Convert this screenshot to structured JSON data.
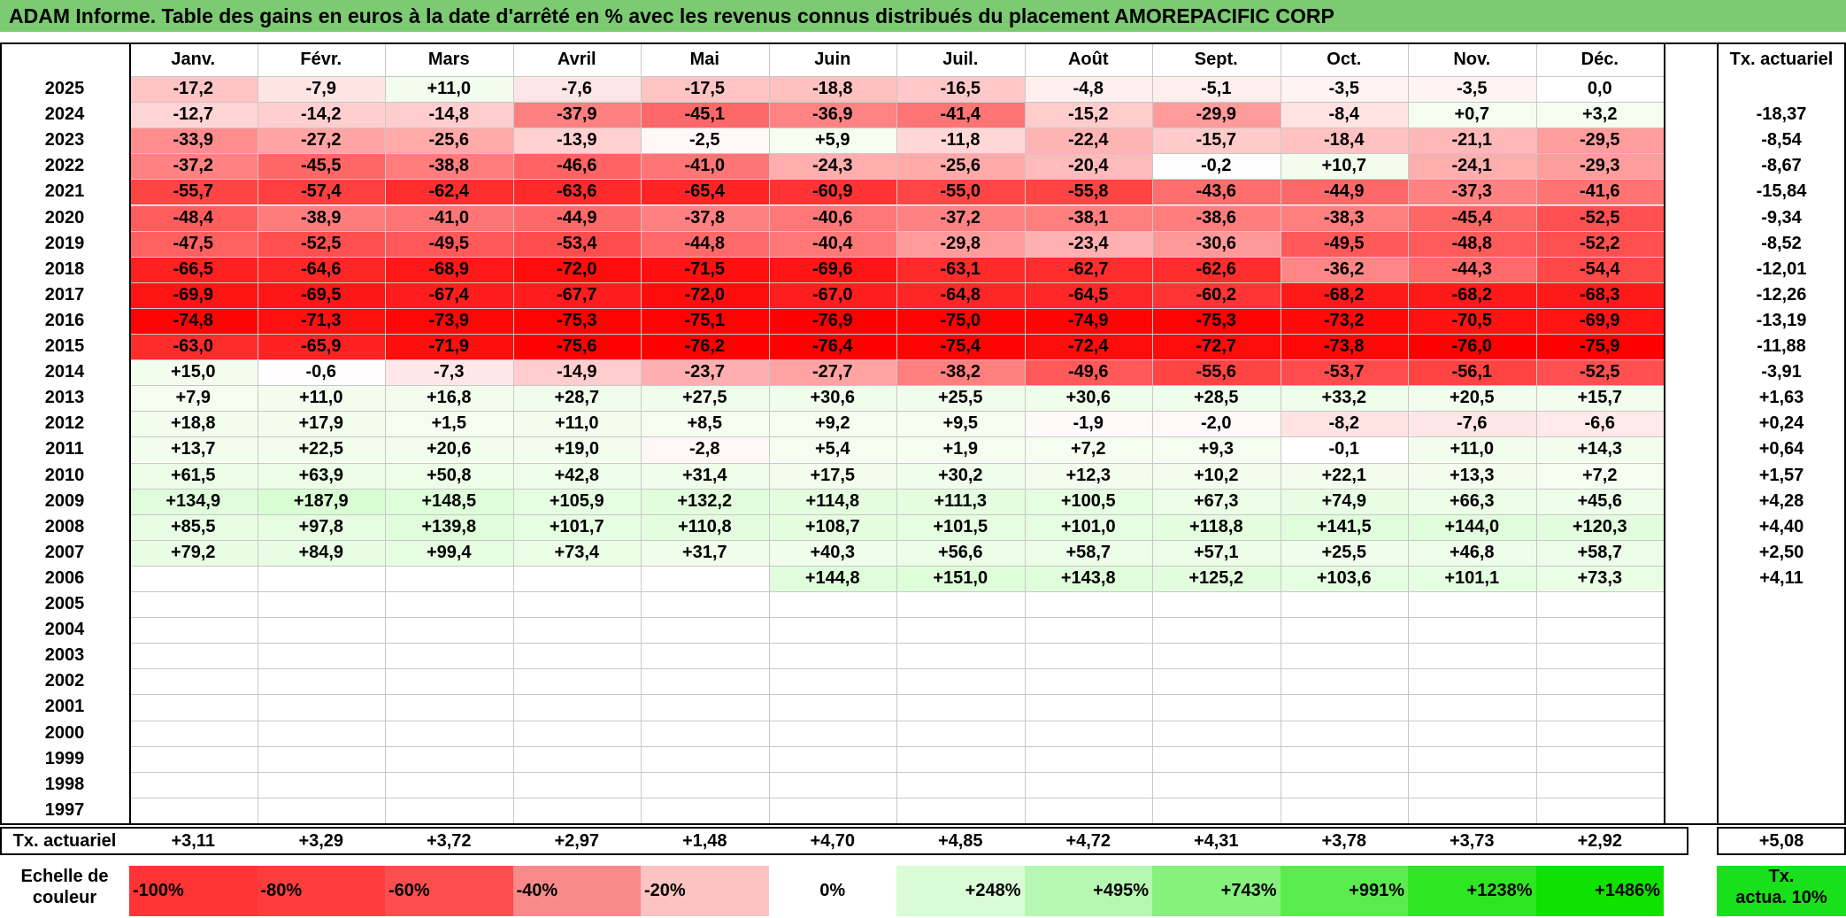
{
  "title": "ADAM Informe. Table des gains en euros à la date d'arrêté en % avec les revenus connus distribués du placement AMOREPACIFIC CORP",
  "months": [
    "Janv.",
    "Févr.",
    "Mars",
    "Avril",
    "Mai",
    "Juin",
    "Juil.",
    "Août",
    "Sept.",
    "Oct.",
    "Nov.",
    "Déc."
  ],
  "tx_header": "Tx. actuariel",
  "rows": [
    {
      "year": "2025",
      "values": [
        "-17,2",
        "-7,9",
        "+11,0",
        "-7,6",
        "-17,5",
        "-18,8",
        "-16,5",
        "-4,8",
        "-5,1",
        "-3,5",
        "-3,5",
        "0,0"
      ],
      "tx": ""
    },
    {
      "year": "2024",
      "values": [
        "-12,7",
        "-14,2",
        "-14,8",
        "-37,9",
        "-45,1",
        "-36,9",
        "-41,4",
        "-15,2",
        "-29,9",
        "-8,4",
        "+0,7",
        "+3,2"
      ],
      "tx": "-18,37"
    },
    {
      "year": "2023",
      "values": [
        "-33,9",
        "-27,2",
        "-25,6",
        "-13,9",
        "-2,5",
        "+5,9",
        "-11,8",
        "-22,4",
        "-15,7",
        "-18,4",
        "-21,1",
        "-29,5"
      ],
      "tx": "-8,54"
    },
    {
      "year": "2022",
      "values": [
        "-37,2",
        "-45,5",
        "-38,8",
        "-46,6",
        "-41,0",
        "-24,3",
        "-25,6",
        "-20,4",
        "-0,2",
        "+10,7",
        "-24,1",
        "-29,3"
      ],
      "tx": "-8,67"
    },
    {
      "year": "2021",
      "values": [
        "-55,7",
        "-57,4",
        "-62,4",
        "-63,6",
        "-65,4",
        "-60,9",
        "-55,0",
        "-55,8",
        "-43,6",
        "-44,9",
        "-37,3",
        "-41,6"
      ],
      "tx": "-15,84"
    },
    {
      "year": "2020",
      "values": [
        "-48,4",
        "-38,9",
        "-41,0",
        "-44,9",
        "-37,8",
        "-40,6",
        "-37,2",
        "-38,1",
        "-38,6",
        "-38,3",
        "-45,4",
        "-52,5"
      ],
      "tx": "-9,34"
    },
    {
      "year": "2019",
      "values": [
        "-47,5",
        "-52,5",
        "-49,5",
        "-53,4",
        "-44,8",
        "-40,4",
        "-29,8",
        "-23,4",
        "-30,6",
        "-49,5",
        "-48,8",
        "-52,2"
      ],
      "tx": "-8,52"
    },
    {
      "year": "2018",
      "values": [
        "-66,5",
        "-64,6",
        "-68,9",
        "-72,0",
        "-71,5",
        "-69,6",
        "-63,1",
        "-62,7",
        "-62,6",
        "-36,2",
        "-44,3",
        "-54,4"
      ],
      "tx": "-12,01"
    },
    {
      "year": "2017",
      "values": [
        "-69,9",
        "-69,5",
        "-67,4",
        "-67,7",
        "-72,0",
        "-67,0",
        "-64,8",
        "-64,5",
        "-60,2",
        "-68,2",
        "-68,2",
        "-68,3"
      ],
      "tx": "-12,26"
    },
    {
      "year": "2016",
      "values": [
        "-74,8",
        "-71,3",
        "-73,9",
        "-75,3",
        "-75,1",
        "-76,9",
        "-75,0",
        "-74,9",
        "-75,3",
        "-73,2",
        "-70,5",
        "-69,9"
      ],
      "tx": "-13,19"
    },
    {
      "year": "2015",
      "values": [
        "-63,0",
        "-65,9",
        "-71,9",
        "-75,6",
        "-76,2",
        "-76,4",
        "-75,4",
        "-72,4",
        "-72,7",
        "-73,8",
        "-76,0",
        "-75,9"
      ],
      "tx": "-11,88"
    },
    {
      "year": "2014",
      "values": [
        "+15,0",
        "-0,6",
        "-7,3",
        "-14,9",
        "-23,7",
        "-27,7",
        "-38,2",
        "-49,6",
        "-55,6",
        "-53,7",
        "-56,1",
        "-52,5"
      ],
      "tx": "-3,91"
    },
    {
      "year": "2013",
      "values": [
        "+7,9",
        "+11,0",
        "+16,8",
        "+28,7",
        "+27,5",
        "+30,6",
        "+25,5",
        "+30,6",
        "+28,5",
        "+33,2",
        "+20,5",
        "+15,7"
      ],
      "tx": "+1,63"
    },
    {
      "year": "2012",
      "values": [
        "+18,8",
        "+17,9",
        "+1,5",
        "+11,0",
        "+8,5",
        "+9,2",
        "+9,5",
        "-1,9",
        "-2,0",
        "-8,2",
        "-7,6",
        "-6,6"
      ],
      "tx": "+0,24"
    },
    {
      "year": "2011",
      "values": [
        "+13,7",
        "+22,5",
        "+20,6",
        "+19,0",
        "-2,8",
        "+5,4",
        "+1,9",
        "+7,2",
        "+9,3",
        "-0,1",
        "+11,0",
        "+14,3"
      ],
      "tx": "+0,64"
    },
    {
      "year": "2010",
      "values": [
        "+61,5",
        "+63,9",
        "+50,8",
        "+42,8",
        "+31,4",
        "+17,5",
        "+30,2",
        "+12,3",
        "+10,2",
        "+22,1",
        "+13,3",
        "+7,2"
      ],
      "tx": "+1,57"
    },
    {
      "year": "2009",
      "values": [
        "+134,9",
        "+187,9",
        "+148,5",
        "+105,9",
        "+132,2",
        "+114,8",
        "+111,3",
        "+100,5",
        "+67,3",
        "+74,9",
        "+66,3",
        "+45,6"
      ],
      "tx": "+4,28"
    },
    {
      "year": "2008",
      "values": [
        "+85,5",
        "+97,8",
        "+139,8",
        "+101,7",
        "+110,8",
        "+108,7",
        "+101,5",
        "+101,0",
        "+118,8",
        "+141,5",
        "+144,0",
        "+120,3"
      ],
      "tx": "+4,40"
    },
    {
      "year": "2007",
      "values": [
        "+79,2",
        "+84,9",
        "+99,4",
        "+73,4",
        "+31,7",
        "+40,3",
        "+56,6",
        "+58,7",
        "+57,1",
        "+25,5",
        "+46,8",
        "+58,7"
      ],
      "tx": "+2,50"
    },
    {
      "year": "2006",
      "values": [
        "",
        "",
        "",
        "",
        "",
        "+144,8",
        "+151,0",
        "+143,8",
        "+125,2",
        "+103,6",
        "+101,1",
        "+73,3"
      ],
      "tx": "+4,11"
    },
    {
      "year": "2005",
      "values": [
        "",
        "",
        "",
        "",
        "",
        "",
        "",
        "",
        "",
        "",
        "",
        ""
      ],
      "tx": ""
    },
    {
      "year": "2004",
      "values": [
        "",
        "",
        "",
        "",
        "",
        "",
        "",
        "",
        "",
        "",
        "",
        ""
      ],
      "tx": ""
    },
    {
      "year": "2003",
      "values": [
        "",
        "",
        "",
        "",
        "",
        "",
        "",
        "",
        "",
        "",
        "",
        ""
      ],
      "tx": ""
    },
    {
      "year": "2002",
      "values": [
        "",
        "",
        "",
        "",
        "",
        "",
        "",
        "",
        "",
        "",
        "",
        ""
      ],
      "tx": ""
    },
    {
      "year": "2001",
      "values": [
        "",
        "",
        "",
        "",
        "",
        "",
        "",
        "",
        "",
        "",
        "",
        ""
      ],
      "tx": ""
    },
    {
      "year": "2000",
      "values": [
        "",
        "",
        "",
        "",
        "",
        "",
        "",
        "",
        "",
        "",
        "",
        ""
      ],
      "tx": ""
    },
    {
      "year": "1999",
      "values": [
        "",
        "",
        "",
        "",
        "",
        "",
        "",
        "",
        "",
        "",
        "",
        ""
      ],
      "tx": ""
    },
    {
      "year": "1998",
      "values": [
        "",
        "",
        "",
        "",
        "",
        "",
        "",
        "",
        "",
        "",
        "",
        ""
      ],
      "tx": ""
    },
    {
      "year": "1997",
      "values": [
        "",
        "",
        "",
        "",
        "",
        "",
        "",
        "",
        "",
        "",
        "",
        ""
      ],
      "tx": ""
    }
  ],
  "footer": {
    "label": "Tx. actuariel",
    "values": [
      "+3,11",
      "+3,29",
      "+3,72",
      "+2,97",
      "+1,48",
      "+4,70",
      "+4,85",
      "+4,72",
      "+4,31",
      "+3,78",
      "+3,73",
      "+2,92"
    ],
    "total": "+5,08"
  },
  "scale": {
    "label_line1": "Echelle de",
    "label_line2": "couleur",
    "items": [
      {
        "text": "-100%",
        "color": "#ff3535",
        "align": "left"
      },
      {
        "text": "-80%",
        "color": "#ff3d3d",
        "align": "left"
      },
      {
        "text": "-60%",
        "color": "#fc4e4e",
        "align": "left"
      },
      {
        "text": "-40%",
        "color": "#fa8a8a",
        "align": "left"
      },
      {
        "text": "-20%",
        "color": "#fdc2c2",
        "align": "left"
      },
      {
        "text": "0%",
        "color": "#ffffff",
        "align": "center"
      },
      {
        "text": "+248%",
        "color": "#d9fbd6",
        "align": "right"
      },
      {
        "text": "+495%",
        "color": "#b5f7b0",
        "align": "right"
      },
      {
        "text": "+743%",
        "color": "#86f17d",
        "align": "right"
      },
      {
        "text": "+991%",
        "color": "#5aec4e",
        "align": "right"
      },
      {
        "text": "+1238%",
        "color": "#2ee622",
        "align": "right"
      },
      {
        "text": "+1486%",
        "color": "#0ee200",
        "align": "right"
      }
    ],
    "tx_label_line1": "Tx.",
    "tx_label_line2": "actua. 10%",
    "tx_color": "#18e01a"
  }
}
